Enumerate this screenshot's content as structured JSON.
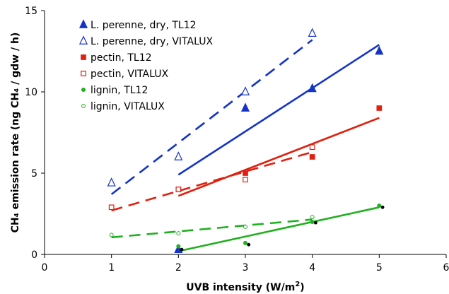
{
  "chart_data": {
    "type": "scatter",
    "xlabel": "UVB intensity (W/m²)",
    "xlabel_parts": {
      "main": "UVB intensity (W/m",
      "sup": "2",
      "end": ")"
    },
    "ylabel": "CH₄ emission rate (ng CH₄ / gdw / h)",
    "xlim": [
      0,
      6
    ],
    "ylim": [
      0,
      15
    ],
    "xticks": [
      0,
      1,
      2,
      3,
      4,
      5,
      6
    ],
    "yticks": [
      0,
      5,
      10,
      15
    ],
    "grid": false,
    "legend_position": "top-left",
    "series": [
      {
        "name": "L. perenne, dry, TL12",
        "marker": "triangle",
        "filled": true,
        "color": "#1434c8",
        "points": [
          [
            2,
            0.3
          ],
          [
            3,
            9.0
          ],
          [
            4,
            10.2
          ],
          [
            5,
            12.5
          ]
        ],
        "fit": {
          "x": [
            2,
            5
          ],
          "y": [
            4.9,
            12.9
          ],
          "dash": false
        }
      },
      {
        "name": "L. perenne, dry, VITALUX",
        "marker": "triangle",
        "filled": false,
        "color": "#1434c8",
        "points": [
          [
            1,
            4.4
          ],
          [
            2,
            6.0
          ],
          [
            3,
            10.0
          ],
          [
            4,
            13.6
          ]
        ],
        "fit": {
          "x": [
            1,
            4
          ],
          "y": [
            3.7,
            13.2
          ],
          "dash": true
        }
      },
      {
        "name": "pectin, TL12",
        "marker": "square",
        "filled": true,
        "color": "#e02010",
        "points": [
          [
            2,
            4.0
          ],
          [
            3,
            5.0
          ],
          [
            4,
            6.0
          ],
          [
            5,
            9.0
          ]
        ],
        "fit": {
          "x": [
            2,
            5
          ],
          "y": [
            3.6,
            8.4
          ],
          "dash": false
        }
      },
      {
        "name": "pectin, VITALUX",
        "marker": "square",
        "filled": false,
        "color": "#e02010",
        "points": [
          [
            1,
            2.9
          ],
          [
            2,
            4.0
          ],
          [
            3,
            4.6
          ],
          [
            4,
            6.6
          ]
        ],
        "fit": {
          "x": [
            1,
            4
          ],
          "y": [
            2.7,
            6.3
          ],
          "dash": true
        }
      },
      {
        "name": "lignin, TL12",
        "marker": "circle",
        "filled": true,
        "color": "#20b020",
        "points": [
          [
            2,
            0.5
          ],
          [
            3,
            0.7
          ],
          [
            4,
            2.0
          ],
          [
            5,
            3.0
          ]
        ],
        "fit": {
          "x": [
            2,
            5
          ],
          "y": [
            0.2,
            2.9
          ],
          "dash": false
        }
      },
      {
        "name": "lignin, VITALUX",
        "marker": "circle",
        "filled": false,
        "color": "#20b020",
        "points": [
          [
            1,
            1.2
          ],
          [
            2,
            1.3
          ],
          [
            3,
            1.7
          ],
          [
            4,
            2.3
          ]
        ],
        "fit": {
          "x": [
            1,
            4
          ],
          "y": [
            1.05,
            2.15
          ],
          "dash": true
        }
      }
    ],
    "extra_points": {
      "color": "#000000",
      "points": [
        [
          2.05,
          0.3
        ],
        [
          3.05,
          0.6
        ],
        [
          4.05,
          1.95
        ],
        [
          5.05,
          2.9
        ]
      ]
    }
  }
}
